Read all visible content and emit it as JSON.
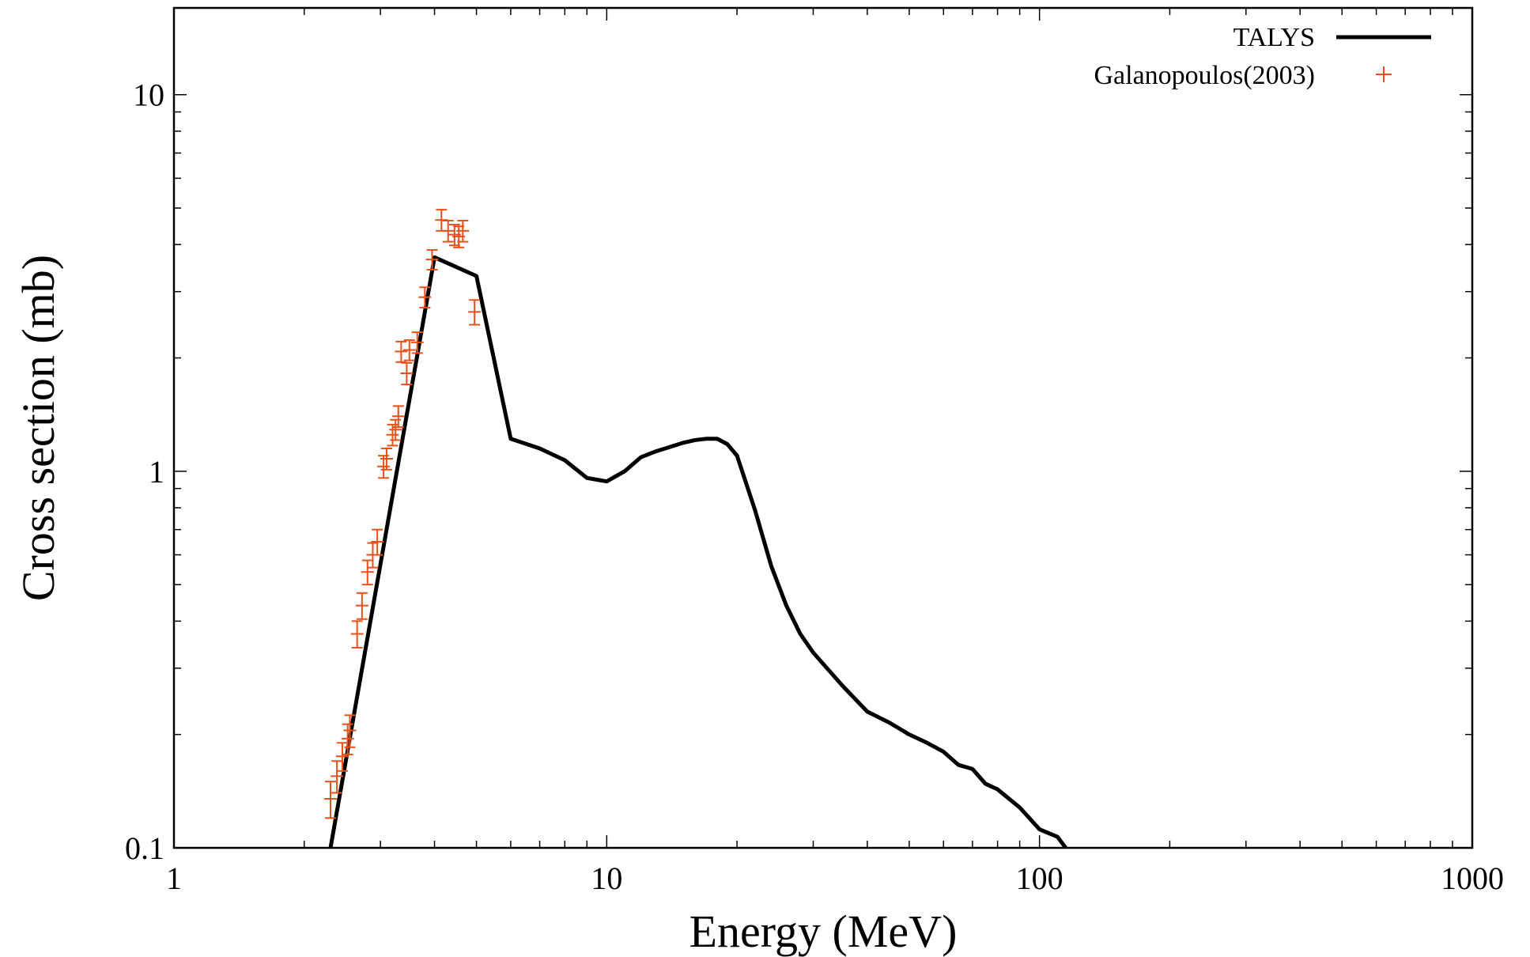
{
  "chart_data": {
    "type": "line",
    "xlabel": "Energy (MeV)",
    "ylabel": "Cross section (mb)",
    "xscale": "log",
    "yscale": "log",
    "xlim": [
      1,
      1000
    ],
    "ylim": [
      0.1,
      17
    ],
    "xticks": [
      {
        "value": 1,
        "label": "1"
      },
      {
        "value": 10,
        "label": "10"
      },
      {
        "value": 100,
        "label": "100"
      },
      {
        "value": 1000,
        "label": "1000"
      }
    ],
    "yticks": [
      {
        "value": 0.1,
        "label": "0.1"
      },
      {
        "value": 1,
        "label": "1"
      },
      {
        "value": 10,
        "label": "10"
      }
    ],
    "grid": false,
    "legend_position": "top-right",
    "colors": {
      "TALYS": "#000000",
      "Galanopoulos(2003)": "#e8501c"
    },
    "series": [
      {
        "name": "TALYS",
        "style": "line",
        "x": [
          2.3,
          4.0,
          5.0,
          6.0,
          7.0,
          8.0,
          9.0,
          10.0,
          11.0,
          12.0,
          13.0,
          14.0,
          15.0,
          16.0,
          17.0,
          18.0,
          19.0,
          20.0,
          22.0,
          24.0,
          26.0,
          28.0,
          30.0,
          35.0,
          40.0,
          45.0,
          50.0,
          55.0,
          60.0,
          65.0,
          70.0,
          75.0,
          80.0,
          90.0,
          100.0,
          110.0,
          115.0
        ],
        "y": [
          0.1,
          3.7,
          3.3,
          1.22,
          1.15,
          1.07,
          0.96,
          0.94,
          1.0,
          1.09,
          1.13,
          1.16,
          1.19,
          1.21,
          1.22,
          1.22,
          1.18,
          1.1,
          0.79,
          0.56,
          0.44,
          0.37,
          0.33,
          0.27,
          0.23,
          0.215,
          0.2,
          0.19,
          0.18,
          0.166,
          0.162,
          0.148,
          0.143,
          0.128,
          0.112,
          0.107,
          0.1
        ]
      },
      {
        "name": "Galanopoulos(2003)",
        "style": "errorbar-points",
        "x": [
          2.3,
          2.38,
          2.45,
          2.52,
          2.55,
          2.65,
          2.72,
          2.8,
          2.88,
          2.95,
          3.05,
          3.1,
          3.2,
          3.25,
          3.3,
          3.35,
          3.45,
          3.5,
          3.65,
          3.8,
          3.95,
          4.15,
          4.3,
          4.45,
          4.55,
          4.65,
          4.95
        ],
        "y": [
          0.135,
          0.155,
          0.175,
          0.195,
          0.205,
          0.37,
          0.44,
          0.54,
          0.6,
          0.65,
          1.03,
          1.08,
          1.25,
          1.29,
          1.4,
          2.08,
          1.82,
          2.1,
          2.2,
          2.9,
          3.65,
          4.65,
          4.35,
          4.25,
          4.2,
          4.35,
          2.65
        ],
        "yerr": [
          0.015,
          0.015,
          0.015,
          0.018,
          0.02,
          0.03,
          0.035,
          0.04,
          0.045,
          0.05,
          0.07,
          0.07,
          0.08,
          0.08,
          0.09,
          0.13,
          0.12,
          0.13,
          0.14,
          0.18,
          0.22,
          0.3,
          0.28,
          0.27,
          0.27,
          0.28,
          0.2
        ]
      }
    ]
  }
}
